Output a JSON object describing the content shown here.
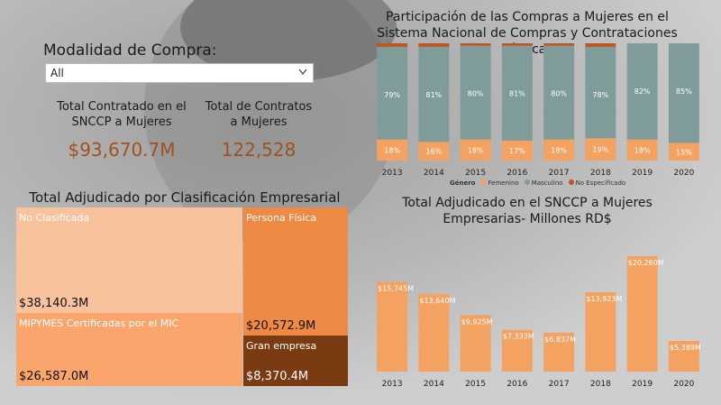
{
  "filter": {
    "title": "Modalidad de Compra:",
    "value": "All"
  },
  "kpis": {
    "total_contratado_label": "Total Contratado en el SNCCP a Mujeres",
    "total_contratado_value": "$93,670.7M",
    "total_contratos_label": "Total de Contratos a Mujeres",
    "total_contratos_value": "122,528"
  },
  "treemap": {
    "title": "Total Adjudicado por Clasificación Empresarial",
    "tiles": [
      {
        "name": "No Clasificada",
        "value": "$38,140.3M",
        "color": "#f8c29c"
      },
      {
        "name": "MIPYMES Certificadas por el MIC",
        "value": "$26,587.0M",
        "color": "#f9a56c"
      },
      {
        "name": "Persona Física",
        "value": "$20,572.9M",
        "color": "#ef8a44"
      },
      {
        "name": "Gran empresa",
        "value": "$8,370.4M",
        "color": "#7a3a12"
      }
    ]
  },
  "chart_data": [
    {
      "type": "bar",
      "stacked": true,
      "title": "Participación de las Compras a Mujeres en el Sistema Nacional de Compras y Contrataciones Públicas",
      "categories": [
        "2013",
        "2014",
        "2015",
        "2016",
        "2017",
        "2018",
        "2019",
        "2020"
      ],
      "legend_title": "Género",
      "series": [
        {
          "name": "Femenino",
          "values": [
            18,
            16,
            18,
            17,
            18,
            19,
            18,
            15
          ],
          "labels": [
            "18%",
            "16%",
            "18%",
            "17%",
            "18%",
            "19%",
            "18%",
            "15%"
          ],
          "color": "#f4a261"
        },
        {
          "name": "Masculino",
          "values": [
            79,
            81,
            80,
            81,
            80,
            78,
            82,
            85
          ],
          "labels": [
            "79%",
            "81%",
            "80%",
            "81%",
            "80%",
            "78%",
            "82%",
            "85%"
          ],
          "color": "#7f9c9b"
        },
        {
          "name": "No Especificado",
          "values": [
            3,
            3,
            2,
            2,
            2,
            3,
            0,
            0
          ],
          "labels": [
            "",
            "",
            "",
            "",
            "",
            "",
            "",
            ""
          ],
          "color": "#c0571e"
        }
      ],
      "ylim": [
        0,
        100
      ],
      "legend_position": "bottom"
    },
    {
      "type": "bar",
      "title": "Total Adjudicado en el SNCCP a Mujeres Empresarias- Millones RD$",
      "categories": [
        "2013",
        "2014",
        "2015",
        "2016",
        "2017",
        "2018",
        "2019",
        "2020"
      ],
      "values": [
        15745,
        13640,
        9925,
        7333,
        6837,
        13923,
        20260,
        5389
      ],
      "labels": [
        "$15,745M",
        "$13,640M",
        "$9,925M",
        "$7,333M",
        "$6,837M",
        "$13,923M",
        "$20,260M",
        "$5,389M"
      ],
      "color": "#f4a261",
      "ylim": [
        0,
        20260
      ]
    }
  ]
}
